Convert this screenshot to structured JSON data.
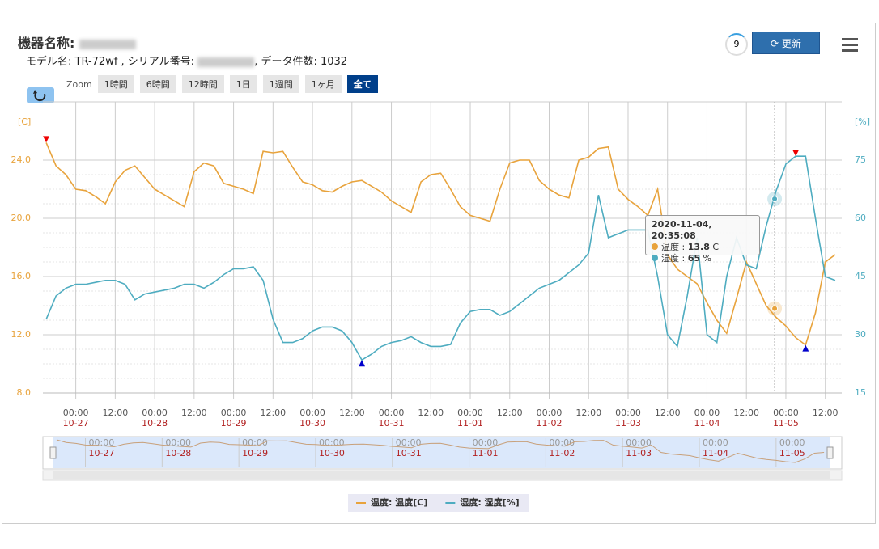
{
  "header": {
    "title": "機器名称: ",
    "model": "モデル名: TR-72wf , シリアル番号: ",
    "count": ", データ件数: 1032"
  },
  "toolbar": {
    "badge": "9",
    "refresh": "更新"
  },
  "zoom": {
    "label": "Zoom",
    "buttons": [
      "1時間",
      "6時間",
      "12時間",
      "1日",
      "1週間",
      "1ヶ月",
      "全て"
    ],
    "active": 6
  },
  "tooltip": {
    "time": "2020-11-04, 20:35:08",
    "items": [
      {
        "label": "温度 : ",
        "value": 13.8,
        "unit": " C"
      },
      {
        "label": "湿度 : ",
        "value": 65,
        "unit": " %"
      }
    ]
  },
  "chart_data": {
    "type": "line",
    "y_label": "[C]",
    "y2_label": "[%]",
    "grid": true,
    "x": [
      "10-26 15:00",
      "10-26 18:00",
      "10-26 21:00",
      "10-27 00:00",
      "10-27 03:00",
      "10-27 06:00",
      "10-27 09:00",
      "10-27 12:00",
      "10-27 15:00",
      "10-27 18:00",
      "10-27 21:00",
      "10-28 00:00",
      "10-28 03:00",
      "10-28 06:00",
      "10-28 09:00",
      "10-28 12:00",
      "10-28 15:00",
      "10-28 18:00",
      "10-28 21:00",
      "10-29 00:00",
      "10-29 03:00",
      "10-29 06:00",
      "10-29 09:00",
      "10-29 12:00",
      "10-29 15:00",
      "10-29 18:00",
      "10-29 21:00",
      "10-30 00:00",
      "10-30 03:00",
      "10-30 06:00",
      "10-30 09:00",
      "10-30 12:00",
      "10-30 15:00",
      "10-30 18:00",
      "10-30 21:00",
      "10-31 00:00",
      "10-31 03:00",
      "10-31 06:00",
      "10-31 09:00",
      "10-31 12:00",
      "10-31 15:00",
      "10-31 18:00",
      "10-31 21:00",
      "11-01 00:00",
      "11-01 03:00",
      "11-01 06:00",
      "11-01 09:00",
      "11-01 12:00",
      "11-01 15:00",
      "11-01 18:00",
      "11-01 21:00",
      "11-02 00:00",
      "11-02 03:00",
      "11-02 06:00",
      "11-02 09:00",
      "11-02 12:00",
      "11-02 15:00",
      "11-02 18:00",
      "11-02 21:00",
      "11-03 00:00",
      "11-03 03:00",
      "11-03 06:00",
      "11-03 09:00",
      "11-03 12:00",
      "11-03 15:00",
      "11-03 18:00",
      "11-03 21:00",
      "11-04 00:00",
      "11-04 03:00",
      "11-04 06:00",
      "11-04 09:00",
      "11-04 12:00",
      "11-04 15:00",
      "11-04 18:00",
      "11-04 21:00",
      "11-05 00:00",
      "11-05 03:00",
      "11-05 06:00",
      "11-05 09:00",
      "11-05 12:00",
      "11-05 15:00"
    ],
    "series": [
      {
        "name": "温度: 温度[C]",
        "color": "#e8a33c",
        "axis": "y",
        "values": [
          25.2,
          23.6,
          23.0,
          22.0,
          21.9,
          21.5,
          21.0,
          22.5,
          23.3,
          23.6,
          22.8,
          22.0,
          21.6,
          21.2,
          20.8,
          23.2,
          23.8,
          23.6,
          22.4,
          22.2,
          22.0,
          21.7,
          24.6,
          24.5,
          24.6,
          23.5,
          22.5,
          22.3,
          21.9,
          21.8,
          22.2,
          22.5,
          22.6,
          22.2,
          21.8,
          21.2,
          20.8,
          20.4,
          22.5,
          23.0,
          23.1,
          22.0,
          20.8,
          20.2,
          20.0,
          19.8,
          22.0,
          23.8,
          24.0,
          24.0,
          22.6,
          22.0,
          21.6,
          21.4,
          24.0,
          24.2,
          24.8,
          24.9,
          22.0,
          21.3,
          20.8,
          20.2,
          22.0,
          17.5,
          16.5,
          16.0,
          15.5,
          14.2,
          13.0,
          12.1,
          14.5,
          17.0,
          15.5,
          14.0,
          13.2,
          12.6,
          11.8,
          11.3,
          13.5,
          17.0,
          17.5
        ]
      },
      {
        "name": "湿度: 湿度[%]",
        "color": "#4eacc0",
        "axis": "y2",
        "values": [
          34,
          40,
          42,
          43,
          43,
          43.5,
          44,
          44,
          43,
          39,
          40.5,
          41,
          41.5,
          42,
          43,
          43,
          42,
          43.5,
          45.5,
          47,
          47,
          47.5,
          44,
          34,
          28,
          28,
          29,
          31,
          32,
          32,
          31,
          28,
          23.5,
          25,
          27,
          28,
          28.5,
          29.5,
          28,
          27,
          27,
          27.5,
          33,
          36,
          36.5,
          36.5,
          35,
          36,
          38,
          40,
          42,
          43,
          44,
          46,
          48,
          51,
          66,
          55,
          56,
          57,
          57,
          57,
          45,
          30,
          27,
          40,
          55,
          30,
          28,
          45,
          55,
          48,
          47,
          58,
          67,
          74,
          76,
          76,
          60,
          45,
          44
        ]
      }
    ],
    "xlim": [
      "10-26 14:00",
      "11-05 17:00"
    ],
    "xticks": [
      {
        "value": "10-27 00:00",
        "label": "00:00",
        "date": "10-27"
      },
      {
        "value": "10-27 12:00",
        "label": "12:00"
      },
      {
        "value": "10-28 00:00",
        "label": "00:00",
        "date": "10-28"
      },
      {
        "value": "10-28 12:00",
        "label": "12:00"
      },
      {
        "value": "10-29 00:00",
        "label": "00:00",
        "date": "10-29"
      },
      {
        "value": "10-29 12:00",
        "label": "12:00"
      },
      {
        "value": "10-30 00:00",
        "label": "00:00",
        "date": "10-30"
      },
      {
        "value": "10-30 12:00",
        "label": "12:00"
      },
      {
        "value": "10-31 00:00",
        "label": "00:00",
        "date": "10-31"
      },
      {
        "value": "10-31 12:00",
        "label": "12:00"
      },
      {
        "value": "11-01 00:00",
        "label": "00:00",
        "date": "11-01"
      },
      {
        "value": "11-01 12:00",
        "label": "12:00"
      },
      {
        "value": "11-02 00:00",
        "label": "00:00",
        "date": "11-02"
      },
      {
        "value": "11-02 12:00",
        "label": "12:00"
      },
      {
        "value": "11-03 00:00",
        "label": "00:00",
        "date": "11-03"
      },
      {
        "value": "11-03 12:00",
        "label": "12:00"
      },
      {
        "value": "11-04 00:00",
        "label": "00:00",
        "date": "11-04"
      },
      {
        "value": "11-04 12:00",
        "label": "12:00"
      },
      {
        "value": "11-05 00:00",
        "label": "00:00",
        "date": "11-05"
      },
      {
        "value": "11-05 12:00",
        "label": "12:00"
      }
    ],
    "ylim": [
      8,
      28
    ],
    "yticks": [
      {
        "value": 8,
        "label": "8.0"
      },
      {
        "value": 12,
        "label": "12.0"
      },
      {
        "value": 16,
        "label": "16.0"
      },
      {
        "value": 20,
        "label": "20.0"
      },
      {
        "value": 24,
        "label": "24.0"
      }
    ],
    "y2lim": [
      15,
      90
    ],
    "y2ticks": [
      15,
      30,
      45,
      60,
      75
    ]
  }
}
